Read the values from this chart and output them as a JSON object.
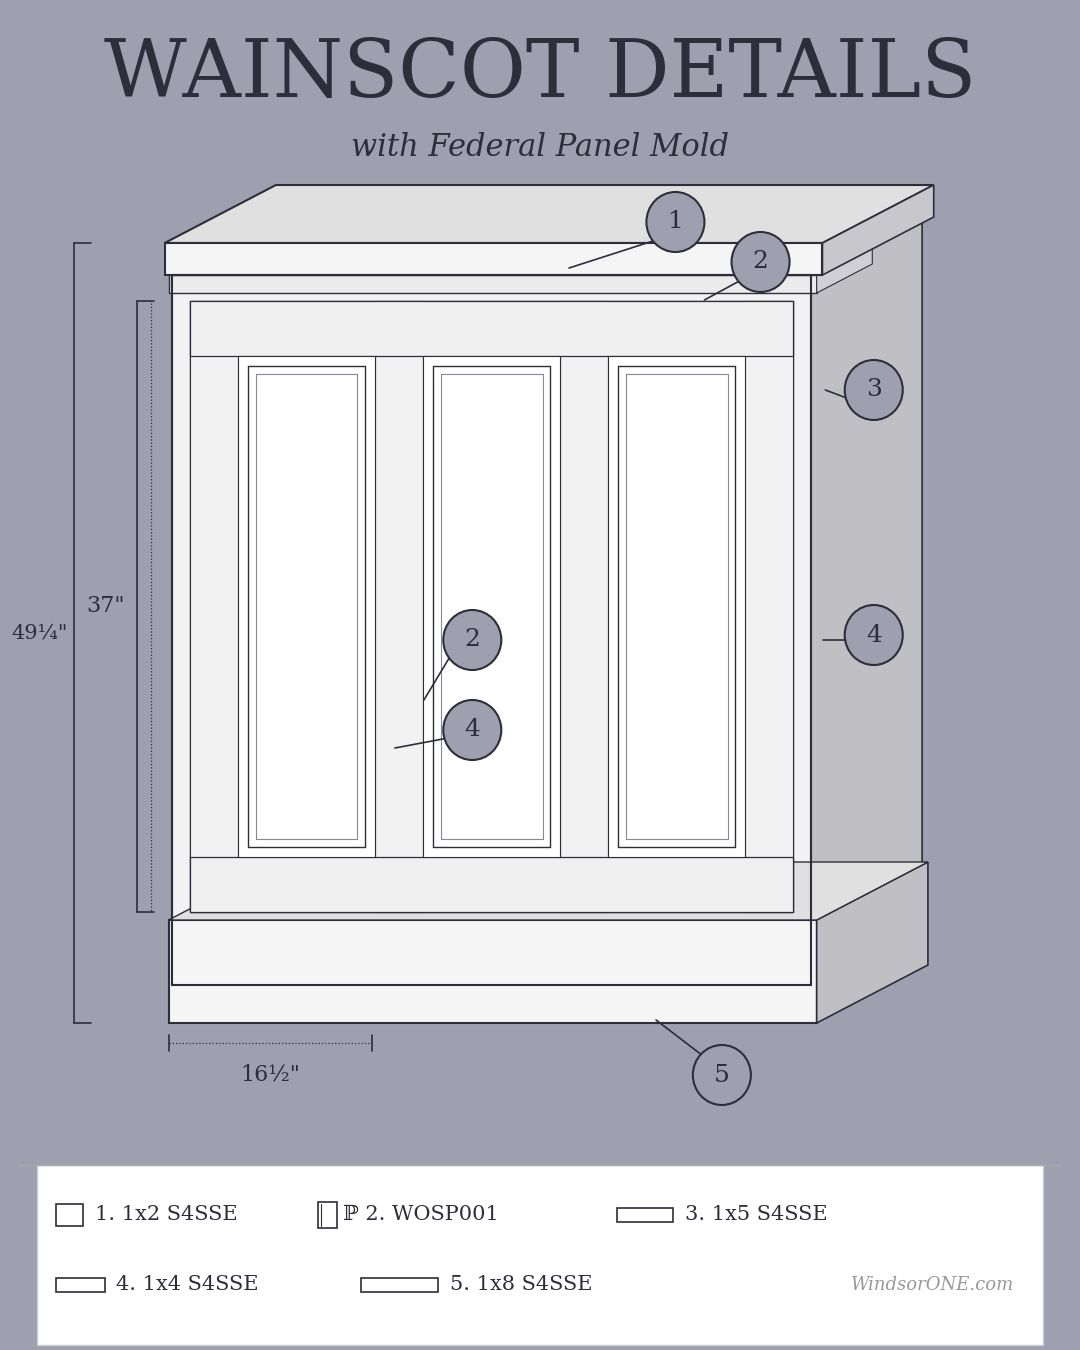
{
  "bg_color": "#9ea0b0",
  "panel_face": "#f5f5f5",
  "panel_inner": "#ffffff",
  "cap_top_color": "#e8e8e8",
  "cap_front_color": "#f0f0f0",
  "side_color": "#c8c8cc",
  "base_color": "#f5f5f5",
  "line_color": "#2e2e3a",
  "dim_color": "#2e2e3a",
  "callout_fill": "#9ea0b0",
  "callout_edge": "#2e2e3a",
  "callout_text": "#2e2e3a",
  "title": "WAINSCOT DETAILS",
  "subtitle": "with Federal Panel Mold",
  "brand": "WindsorONE.com",
  "dim_37": "37\"",
  "dim_49": "49¼\"",
  "dim_16": "16½\"",
  "title_size": 58,
  "subtitle_size": 22,
  "legend_items_row1": [
    {
      "icon": "small_rect",
      "text": "1. 1x2 S4SSE"
    },
    {
      "icon": "panel_icon",
      "text": "ℙ 2. WOSP001"
    },
    {
      "icon": "wide_rect",
      "text": "3. 1x5 S4SSE"
    }
  ],
  "legend_items_row2": [
    {
      "icon": "med_rect",
      "text": "4. 1x4 S4SSE"
    },
    {
      "icon": "long_rect",
      "text": "5. 1x8 S4SSE"
    }
  ]
}
